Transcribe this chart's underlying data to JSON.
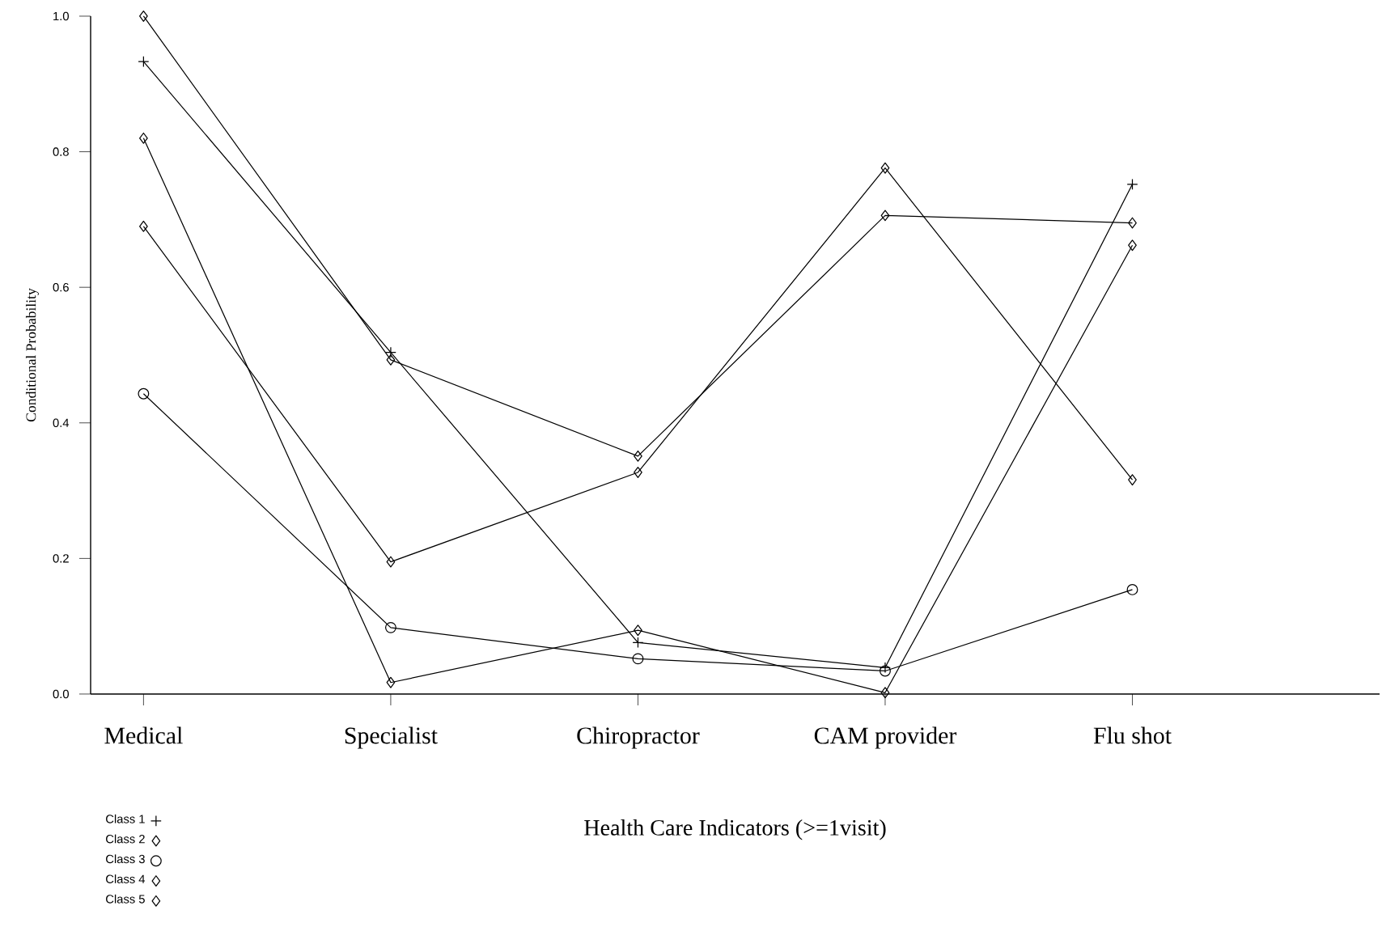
{
  "chart_data": {
    "type": "line",
    "xlabel": "Health Care Indicators (>=1visit)",
    "ylabel": "Conditional Probability",
    "categories": [
      "Medical",
      "Specialist",
      "Chiropractor",
      "CAM provider",
      "Flu shot"
    ],
    "ylim": [
      0,
      1.0
    ],
    "yticks": [
      {
        "value": 0,
        "label": "0.0"
      },
      0.2,
      0.4,
      0.6,
      0.8,
      {
        "value": 1.0,
        "label": "1.0"
      }
    ],
    "grid": false,
    "legend": "bottom left",
    "line_style": "solid",
    "series": [
      {
        "name": "Class 1",
        "color": "#000000",
        "marker": "cross",
        "values": [
          0.933,
          0.504,
          0.076,
          0.039,
          0.752
        ]
      },
      {
        "name": "Class 2",
        "color": "#000000",
        "marker": "diamond",
        "values": [
          0.82,
          0.017,
          0.094,
          0.002,
          0.662
        ]
      },
      {
        "name": "Class 3",
        "color": "#000000",
        "marker": "circle",
        "values": [
          0.443,
          0.098,
          0.052,
          0.034,
          0.154
        ]
      },
      {
        "name": "Class 4",
        "color": "#000000",
        "marker": "diamond",
        "values": [
          0.69,
          0.195,
          0.327,
          0.776,
          0.316
        ]
      },
      {
        "name": "Class 5",
        "color": "#000000",
        "marker": "diamond",
        "values": [
          1.0,
          0.493,
          0.351,
          0.706,
          0.695
        ]
      }
    ]
  }
}
